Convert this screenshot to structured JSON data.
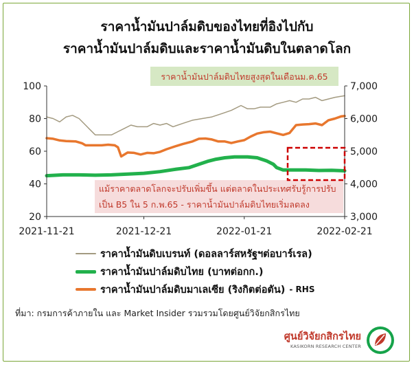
{
  "header": {
    "title_line1": "ราคาน้ำมันปาล์มดิบของไทยที่อิงไปกับ",
    "title_line2": "ราคาน้ำมันปาล์มดิบและราคาน้ำมันดิบในตลาดโลก"
  },
  "chart_data": {
    "type": "line",
    "x_ticks": [
      "2021-11-21",
      "2021-12-21",
      "2022-01-21",
      "2022-02-21"
    ],
    "x_range": [
      "2021-11-21",
      "2022-02-21"
    ],
    "y_left": {
      "min": 20,
      "max": 100,
      "ticks": [
        "20",
        "40",
        "60",
        "80",
        "100"
      ]
    },
    "y_right": {
      "min": 3000,
      "max": 7000,
      "ticks": [
        "3,000",
        "4,000",
        "5,000",
        "6,000",
        "7,000"
      ]
    },
    "grid": false,
    "legend_position": "bottom",
    "series": [
      {
        "name": "ราคาน้ำมันดิบเบรนท์ (ดอลลาร์สหรัฐฯต่อบาร์เรล)",
        "axis": "left",
        "color": "#a39a80",
        "width": 1.5,
        "values": [
          [
            0,
            81
          ],
          [
            2,
            80
          ],
          [
            4,
            78
          ],
          [
            6,
            81
          ],
          [
            8,
            82
          ],
          [
            10,
            80
          ],
          [
            12,
            76
          ],
          [
            13,
            74
          ],
          [
            15,
            70
          ],
          [
            17,
            70
          ],
          [
            20,
            70
          ],
          [
            22,
            72
          ],
          [
            24,
            74
          ],
          [
            26,
            76
          ],
          [
            28,
            75
          ],
          [
            31,
            75
          ],
          [
            33,
            77
          ],
          [
            35,
            76
          ],
          [
            37,
            77
          ],
          [
            39,
            75
          ],
          [
            42,
            77
          ],
          [
            45,
            79
          ],
          [
            48,
            80
          ],
          [
            51,
            81
          ],
          [
            54,
            83
          ],
          [
            57,
            85
          ],
          [
            60,
            88
          ],
          [
            62,
            86
          ],
          [
            64,
            86
          ],
          [
            66,
            87
          ],
          [
            69,
            87
          ],
          [
            71,
            89
          ],
          [
            73,
            90
          ],
          [
            75,
            91
          ],
          [
            77,
            90
          ],
          [
            79,
            92
          ],
          [
            81,
            92
          ],
          [
            83,
            93
          ],
          [
            85,
            91
          ],
          [
            87,
            92
          ],
          [
            89,
            93
          ],
          [
            92,
            94
          ]
        ]
      },
      {
        "name": "ราคาน้ำมันปาล์มดิบไทย (บาทต่อกก.)",
        "axis": "left",
        "color": "#22b14c",
        "width": 5,
        "values": [
          [
            0,
            45
          ],
          [
            5,
            45.5
          ],
          [
            10,
            45.5
          ],
          [
            15,
            45.3
          ],
          [
            20,
            45.5
          ],
          [
            25,
            46
          ],
          [
            30,
            46.5
          ],
          [
            35,
            47.5
          ],
          [
            40,
            49
          ],
          [
            44,
            50
          ],
          [
            47,
            52
          ],
          [
            50,
            54
          ],
          [
            52,
            55
          ],
          [
            55,
            56
          ],
          [
            58,
            56.5
          ],
          [
            62,
            56.5
          ],
          [
            65,
            56
          ],
          [
            68,
            54
          ],
          [
            70,
            52
          ],
          [
            71,
            50
          ],
          [
            73,
            48.5
          ],
          [
            76,
            48.5
          ],
          [
            80,
            48.5
          ],
          [
            84,
            48.2
          ],
          [
            88,
            48.3
          ],
          [
            92,
            48
          ]
        ]
      },
      {
        "name": "ราคาน้ำมันปาล์มดิบมาเลเซีย (ริงกิตต่อตัน)",
        "axis": "right",
        "color": "#e8772e",
        "width": 3.5,
        "rhs_label": "- RHS",
        "values": [
          [
            0,
            5400
          ],
          [
            2,
            5380
          ],
          [
            4,
            5330
          ],
          [
            6,
            5310
          ],
          [
            9,
            5300
          ],
          [
            11,
            5240
          ],
          [
            12,
            5180
          ],
          [
            14,
            5180
          ],
          [
            17,
            5180
          ],
          [
            19,
            5200
          ],
          [
            21,
            5180
          ],
          [
            22,
            5120
          ],
          [
            23,
            4840
          ],
          [
            25,
            4960
          ],
          [
            27,
            4950
          ],
          [
            29,
            4900
          ],
          [
            31,
            4950
          ],
          [
            33,
            4940
          ],
          [
            35,
            4980
          ],
          [
            37,
            5060
          ],
          [
            40,
            5160
          ],
          [
            42,
            5220
          ],
          [
            45,
            5300
          ],
          [
            47,
            5380
          ],
          [
            49,
            5390
          ],
          [
            51,
            5360
          ],
          [
            53,
            5300
          ],
          [
            55,
            5300
          ],
          [
            57,
            5250
          ],
          [
            59,
            5300
          ],
          [
            61,
            5340
          ],
          [
            63,
            5450
          ],
          [
            65,
            5540
          ],
          [
            67,
            5580
          ],
          [
            69,
            5600
          ],
          [
            71,
            5550
          ],
          [
            73,
            5500
          ],
          [
            75,
            5560
          ],
          [
            77,
            5800
          ],
          [
            79,
            5820
          ],
          [
            81,
            5830
          ],
          [
            83,
            5850
          ],
          [
            85,
            5800
          ],
          [
            87,
            5950
          ],
          [
            89,
            6000
          ],
          [
            91,
            6070
          ],
          [
            92,
            6080
          ]
        ]
      }
    ],
    "annotations": {
      "peak_box": "ราคาน้ำมันปาล์มดิบไทยสูงสุดในเดือนม.ค.65",
      "note_line1": "แม้ราคาตลาดโลกจะปรับเพิ่มขึ้น แต่ตลาดในประเทศรับรู้การปรับ",
      "note_line2": "เป็น B5 ใน 5 ก.พ.65 - ราคาน้ำมันปาล์มดิบไทยเริ่มลดลง"
    }
  },
  "legend": {
    "brent": "ราคาน้ำมันดิบเบรนท์ (ดอลลาร์สหรัฐฯต่อบาร์เรล)",
    "thai": "ราคาน้ำมันปาล์มดิบไทย (บาทต่อกก.)",
    "malaysia": "ราคาน้ำมันปาล์มดิบมาเลเซีย (ริงกิตต่อตัน)",
    "rhs": "- RHS"
  },
  "footer": {
    "source": "ที่มา: กรมการค้าภายใน และ Market Insider รวมรวมโดยศูนย์วิจัยกสิกรไทย",
    "logo_name": "ศูนย์วิจัยกสิกรไทย",
    "logo_sub": "KASIKORN RESEARCH CENTER"
  },
  "colors": {
    "border": "#7aa637",
    "top_anno_bg": "#d6e8c4",
    "note_bg": "#f6dcdc",
    "highlight_box": "#cc0000"
  }
}
